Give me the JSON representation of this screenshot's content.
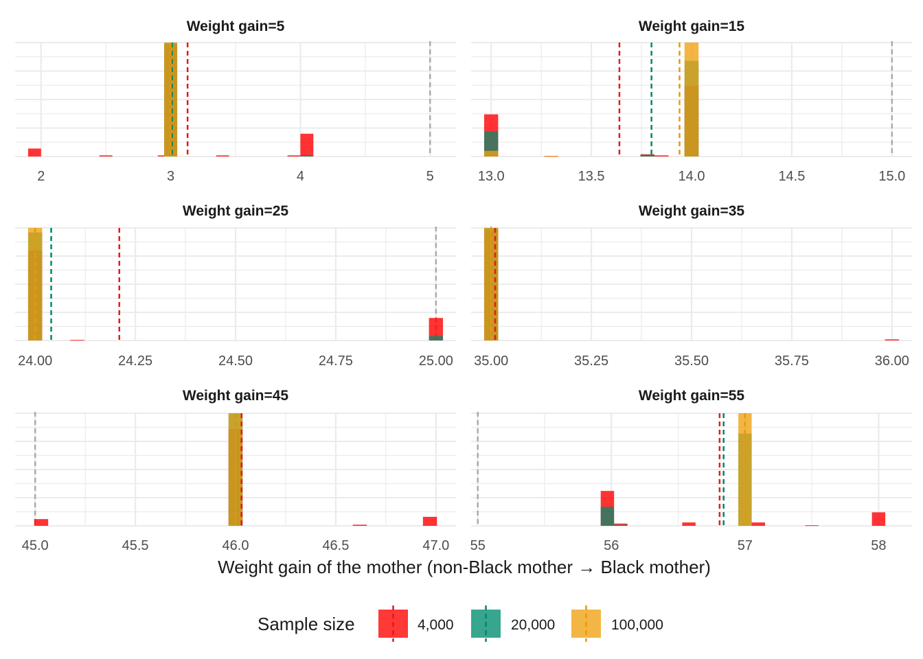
{
  "chart_data": {
    "type": "histogram",
    "xlabel": "Weight gain of the mother (non-Black mother → Black mother)",
    "legend": {
      "title": "Sample size",
      "placement": "bottom",
      "entries": [
        {
          "key": "n4000",
          "label": "4,000",
          "fill": "#FF0000",
          "line": "#E31A1C"
        },
        {
          "key": "n20000",
          "label": "20,000",
          "fill": "#008C6E",
          "line": "#00856A"
        },
        {
          "key": "n100000",
          "label": "100,000",
          "fill": "#F0A010",
          "line": "#E89A08"
        }
      ]
    },
    "reference_line_color": "#AAAAAA",
    "grid": true,
    "facets": [
      {
        "title": "Weight gain=5",
        "xlim": [
          1.8,
          5.2
        ],
        "ymax": 1.0,
        "bin_width": 0.1,
        "ticks": [
          {
            "v": 2,
            "label": "2"
          },
          {
            "v": 3,
            "label": "3"
          },
          {
            "v": 4,
            "label": "4"
          },
          {
            "v": 5,
            "label": "5"
          }
        ],
        "reference": 5,
        "means": {
          "n4000": 3.13,
          "n20000": 3.01,
          "n100000": 3.0
        },
        "bins": {
          "n4000": [
            [
              1.95,
              0.07
            ],
            [
              2.5,
              0.01
            ],
            [
              2.95,
              0.01
            ],
            [
              3.0,
              0.99
            ],
            [
              3.4,
              0.01
            ],
            [
              3.95,
              0.01
            ],
            [
              4.05,
              0.2
            ]
          ],
          "n20000": [
            [
              3.0,
              1.0
            ],
            [
              4.05,
              0.01
            ]
          ],
          "n100000": [
            [
              3.0,
              1.0
            ]
          ]
        }
      },
      {
        "title": "Weight gain=15",
        "xlim": [
          12.9,
          15.1
        ],
        "ymax": 1.0,
        "bin_width": 0.07,
        "ticks": [
          {
            "v": 13,
            "label": "13.0"
          },
          {
            "v": 13.5,
            "label": "13.5"
          },
          {
            "v": 14,
            "label": "14.0"
          },
          {
            "v": 14.5,
            "label": "14.5"
          },
          {
            "v": 15,
            "label": "15.0"
          }
        ],
        "reference": 15,
        "means": {
          "n4000": 13.64,
          "n20000": 13.8,
          "n100000": 13.94
        },
        "bins": {
          "n4000": [
            [
              13.0,
              0.37
            ],
            [
              13.3,
              0.005
            ],
            [
              13.78,
              0.02
            ],
            [
              13.85,
              0.01
            ],
            [
              14.0,
              0.62
            ]
          ],
          "n20000": [
            [
              13.0,
              0.22
            ],
            [
              13.78,
              0.015
            ],
            [
              14.0,
              0.84
            ]
          ],
          "n100000": [
            [
              13.0,
              0.05
            ],
            [
              13.3,
              0.005
            ],
            [
              14.0,
              1.0
            ]
          ]
        }
      },
      {
        "title": "Weight gain=25",
        "xlim": [
          23.95,
          25.05
        ],
        "ymax": 1.0,
        "bin_width": 0.035,
        "ticks": [
          {
            "v": 24,
            "label": "24.00"
          },
          {
            "v": 24.25,
            "label": "24.25"
          },
          {
            "v": 24.5,
            "label": "24.50"
          },
          {
            "v": 24.75,
            "label": "24.75"
          },
          {
            "v": 25,
            "label": "25.00"
          }
        ],
        "reference": 25,
        "means": {
          "n4000": 24.21,
          "n20000": 24.04,
          "n100000": 24.0
        },
        "bins": {
          "n4000": [
            [
              24.0,
              0.8
            ],
            [
              24.105,
              0.005
            ],
            [
              25.0,
              0.2
            ]
          ],
          "n20000": [
            [
              24.0,
              0.96
            ],
            [
              25.0,
              0.04
            ]
          ],
          "n100000": [
            [
              24.0,
              1.0
            ]
          ]
        }
      },
      {
        "title": "Weight gain=35",
        "xlim": [
          34.95,
          36.05
        ],
        "ymax": 1.0,
        "bin_width": 0.035,
        "ticks": [
          {
            "v": 35,
            "label": "35.00"
          },
          {
            "v": 35.25,
            "label": "35.25"
          },
          {
            "v": 35.5,
            "label": "35.50"
          },
          {
            "v": 35.75,
            "label": "35.75"
          },
          {
            "v": 36,
            "label": "36.00"
          }
        ],
        "reference": 35,
        "means": {
          "n4000": 35.01,
          "n20000": 35.0,
          "n100000": 35.0
        },
        "bins": {
          "n4000": [
            [
              35.0,
              0.99
            ],
            [
              36.0,
              0.01
            ]
          ],
          "n20000": [
            [
              35.0,
              1.0
            ]
          ],
          "n100000": [
            [
              35.0,
              1.0
            ]
          ]
        }
      },
      {
        "title": "Weight gain=45",
        "xlim": [
          44.9,
          47.1
        ],
        "ymax": 1.0,
        "bin_width": 0.07,
        "ticks": [
          {
            "v": 45,
            "label": "45.0"
          },
          {
            "v": 45.5,
            "label": "45.5"
          },
          {
            "v": 46,
            "label": "46.0"
          },
          {
            "v": 46.5,
            "label": "46.5"
          },
          {
            "v": 47,
            "label": "47.0"
          }
        ],
        "reference": 45,
        "means": {
          "n4000": 46.03,
          "n20000": 46.0,
          "n100000": 46.0
        },
        "bins": {
          "n4000": [
            [
              45.03,
              0.06
            ],
            [
              46.0,
              0.86
            ],
            [
              46.62,
              0.01
            ],
            [
              46.97,
              0.08
            ]
          ],
          "n20000": [
            [
              46.0,
              1.0
            ]
          ],
          "n100000": [
            [
              46.0,
              1.0
            ]
          ]
        }
      },
      {
        "title": "Weight gain=55",
        "xlim": [
          54.95,
          58.25
        ],
        "ymax": 1.0,
        "bin_width": 0.1,
        "ticks": [
          {
            "v": 55,
            "label": "55"
          },
          {
            "v": 56,
            "label": "56"
          },
          {
            "v": 57,
            "label": "57"
          },
          {
            "v": 58,
            "label": "58"
          }
        ],
        "reference": 55,
        "means": {
          "n4000": 56.81,
          "n20000": 56.84,
          "n100000": 57.0
        },
        "bins": {
          "n4000": [
            [
              55.97,
              0.31
            ],
            [
              56.07,
              0.02
            ],
            [
              56.58,
              0.03
            ],
            [
              57.1,
              0.03
            ],
            [
              57.5,
              0.005
            ],
            [
              58.0,
              0.12
            ]
          ],
          "n20000": [
            [
              55.97,
              0.17
            ],
            [
              56.07,
              0.01
            ],
            [
              57.0,
              0.82
            ]
          ],
          "n100000": [
            [
              57.0,
              1.0
            ]
          ]
        }
      }
    ]
  }
}
